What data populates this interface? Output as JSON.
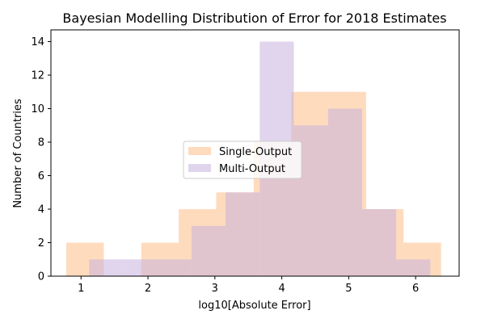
{
  "chart_data": {
    "type": "bar",
    "title": "Bayesian Modelling Distribution of Error for 2018 Estimates",
    "xlabel": "log10[Absolute Error]",
    "ylabel": "Number of Countries",
    "xlim": [
      0.55,
      6.65
    ],
    "ylim": [
      0,
      14.7
    ],
    "xticks": [
      1,
      2,
      3,
      4,
      5,
      6
    ],
    "yticks": [
      0,
      2,
      4,
      6,
      8,
      10,
      12,
      14
    ],
    "grid": false,
    "legend_position": "center-left",
    "series": [
      {
        "name": "Single-Output",
        "color": "#ffbe86",
        "opacity": 0.55,
        "bin_edges": [
          0.78,
          1.34,
          1.9,
          2.46,
          3.02,
          3.58,
          4.14,
          4.7,
          5.26,
          5.82,
          6.38
        ],
        "values": [
          2,
          0,
          2,
          4,
          5,
          8,
          11,
          11,
          4,
          2
        ]
      },
      {
        "name": "Multi-Output",
        "color": "#c7b2de",
        "opacity": 0.55,
        "bin_edges": [
          1.12,
          1.63,
          2.14,
          2.65,
          3.16,
          3.67,
          4.18,
          4.69,
          5.2,
          5.71,
          6.22
        ],
        "values": [
          1,
          1,
          1,
          3,
          5,
          14,
          9,
          10,
          4,
          1
        ]
      }
    ]
  }
}
